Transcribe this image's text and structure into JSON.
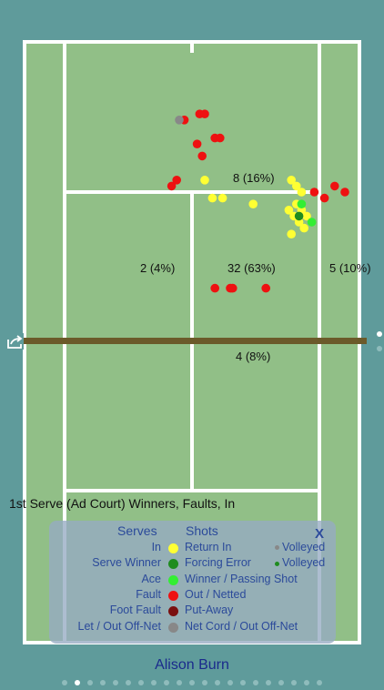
{
  "court": {
    "colors": {
      "surface": "#91bf87",
      "lines": "#ffffff",
      "net": "#6b5a2a",
      "background": "#5f9b9b"
    }
  },
  "zones": [
    {
      "id": "wide",
      "label": "8 (16%)"
    },
    {
      "id": "body-left",
      "label": "2 (4%)"
    },
    {
      "id": "center",
      "label": "32 (63%)"
    },
    {
      "id": "body-right",
      "label": "5 (10%)"
    },
    {
      "id": "net",
      "label": "4 (8%)"
    }
  ],
  "chart_title": "1st Serve (Ad Court) Winners, Faults, In",
  "shots": {
    "note": "points in court-relative units (0-1 across width, 0-1 along length, top baseline = 0)",
    "in": [
      [
        0.55,
        0.23
      ],
      [
        0.58,
        0.26
      ],
      [
        0.62,
        0.26
      ],
      [
        0.74,
        0.27
      ],
      [
        0.89,
        0.23
      ],
      [
        0.93,
        0.25
      ],
      [
        0.91,
        0.27
      ],
      [
        0.9,
        0.29
      ],
      [
        0.92,
        0.3
      ],
      [
        0.94,
        0.31
      ],
      [
        0.89,
        0.32
      ],
      [
        0.95,
        0.29
      ],
      [
        0.91,
        0.24
      ],
      [
        0.93,
        0.28
      ],
      [
        0.88,
        0.28
      ]
    ],
    "serve_winner": [
      [
        0.92,
        0.29
      ]
    ],
    "ace": [
      [
        0.93,
        0.27
      ],
      [
        0.97,
        0.3
      ]
    ],
    "fault": [
      [
        0.47,
        0.13
      ],
      [
        0.53,
        0.12
      ],
      [
        0.55,
        0.12
      ],
      [
        0.59,
        0.16
      ],
      [
        0.61,
        0.16
      ],
      [
        0.54,
        0.19
      ],
      [
        0.52,
        0.17
      ],
      [
        0.42,
        0.24
      ],
      [
        0.44,
        0.23
      ],
      [
        0.98,
        0.25
      ],
      [
        1.02,
        0.26
      ],
      [
        1.06,
        0.24
      ],
      [
        1.1,
        0.25
      ],
      [
        0.59,
        0.41
      ],
      [
        0.65,
        0.41
      ],
      [
        0.66,
        0.41
      ],
      [
        0.79,
        0.41
      ]
    ],
    "let": [
      [
        0.45,
        0.13
      ]
    ]
  },
  "legend": {
    "serves_header": "Serves",
    "shots_header": "Shots",
    "close_label": "X",
    "rows": [
      {
        "serve": "In",
        "color": "#ffff33",
        "shot": "Return In",
        "volley": "Volleyed",
        "volley_color": "#888888"
      },
      {
        "serve": "Serve Winner",
        "color": "#1f8c1f",
        "shot": "Forcing Error",
        "volley": "Volleyed",
        "volley_color": "#1f8c1f"
      },
      {
        "serve": "Ace",
        "color": "#33ee33",
        "shot": "Winner / Passing Shot",
        "volley": "",
        "volley_color": ""
      },
      {
        "serve": "Fault",
        "color": "#ee1111",
        "shot": "Out / Netted",
        "volley": "",
        "volley_color": ""
      },
      {
        "serve": "Foot Fault",
        "color": "#7a1010",
        "shot": "Put-Away",
        "volley": "",
        "volley_color": ""
      },
      {
        "serve": "Let / Out Off-Net",
        "color": "#888888",
        "shot": "Net Cord / Out Off-Net",
        "volley": "",
        "volley_color": ""
      }
    ]
  },
  "player_name": "Alison Burn",
  "pager": {
    "count": 21,
    "active": 1
  }
}
